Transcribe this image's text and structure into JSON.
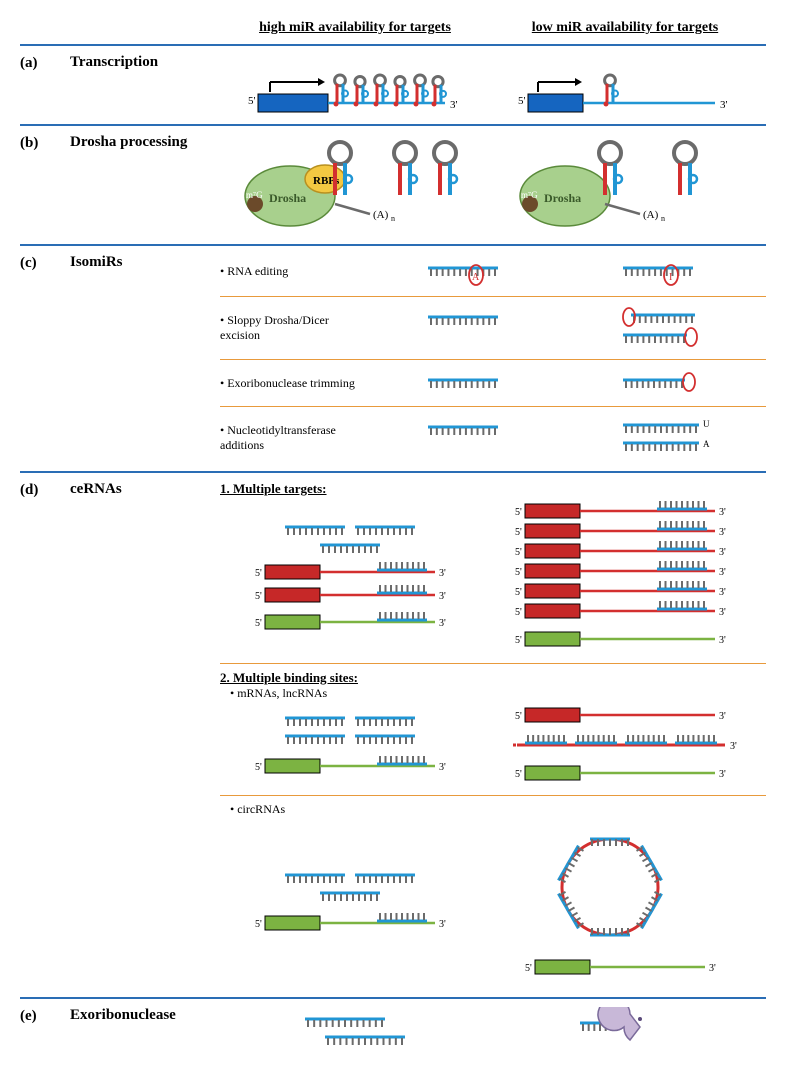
{
  "headers": {
    "high": "high miR availability for targets",
    "low": "low miR availability for targets"
  },
  "rows": {
    "a": {
      "label": "(a)",
      "title": "Transcription"
    },
    "b": {
      "label": "(b)",
      "title": "Drosha processing"
    },
    "c": {
      "label": "(c)",
      "title": "IsomiRs",
      "items": [
        "• RNA editing",
        "• Sloppy Drosha/Dicer excision",
        "• Exoribonuclease trimming",
        "• Nucleotidyltransferase additions"
      ]
    },
    "d": {
      "label": "(d)",
      "title": "ceRNAs",
      "sub1": "1. Multiple targets:",
      "sub2": "2. Multiple binding sites:",
      "sub2a": "• mRNAs, lncRNAs",
      "sub2b": "• circRNAs"
    },
    "e": {
      "label": "(e)",
      "title": "Exoribonuclease"
    }
  },
  "labels": {
    "five_prime": "5'",
    "three_prime": "3'",
    "drosha": "Drosha",
    "rbps": "RBPs",
    "m7g": "m⁷G",
    "polyA": "(A)",
    "U": "U",
    "A": "A",
    "I": "I",
    "n": "n"
  },
  "colors": {
    "blue_divider": "#2a6db5",
    "orange_divider": "#e89a3c",
    "rna_blue": "#2196d4",
    "rna_dark_blue": "#1565c0",
    "rna_red": "#d32f2f",
    "rna_red_box": "#c62828",
    "rna_green": "#7cb342",
    "gray": "#6b6b6b",
    "drosha_green": "#a8d08d",
    "rbp_yellow": "#f4c842",
    "circle_red": "#d32f2f",
    "pacman": "#c8b8d8",
    "black": "#000000"
  },
  "styling": {
    "font_family": "Times New Roman, serif",
    "header_fontsize": 14,
    "label_fontsize": 15,
    "item_fontsize": 12,
    "divider_width": 2,
    "sub_divider_width": 1
  }
}
